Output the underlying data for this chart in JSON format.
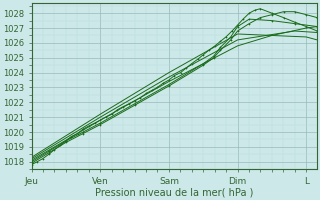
{
  "xlabel": "Pression niveau de la mer( hPa )",
  "background_color": "#cce8e8",
  "plot_bg_color": "#cce8e8",
  "line_color": "#1a6b1a",
  "grid_major_color": "#99bbbb",
  "grid_minor_color": "#bbdddd",
  "ylim": [
    1017.5,
    1028.7
  ],
  "xlim": [
    0,
    4.16
  ],
  "yticks": [
    1018,
    1019,
    1020,
    1021,
    1022,
    1023,
    1024,
    1025,
    1026,
    1027,
    1028
  ],
  "xtick_labels": [
    "Jeu",
    "Ven",
    "Sam",
    "Dim",
    "L"
  ],
  "xtick_pos": [
    0,
    1,
    2,
    3,
    4
  ],
  "series": [
    {
      "x": [
        0.0,
        0.08,
        0.16,
        0.25,
        0.33,
        0.42,
        0.5,
        0.58,
        0.67,
        0.75,
        0.83,
        0.92,
        1.0,
        1.08,
        1.17,
        1.25,
        1.33,
        1.42,
        1.5,
        1.58,
        1.67,
        1.75,
        1.83,
        1.92,
        2.0,
        2.08,
        2.17,
        2.25,
        2.33,
        2.42,
        2.5,
        2.58,
        2.67,
        2.75,
        2.83,
        2.92,
        3.0,
        3.08,
        3.17,
        3.25,
        3.33,
        3.5,
        3.67,
        3.83,
        4.0,
        4.16
      ],
      "y": [
        1017.8,
        1018.0,
        1018.2,
        1018.5,
        1018.8,
        1019.1,
        1019.4,
        1019.7,
        1019.9,
        1020.2,
        1020.4,
        1020.6,
        1020.8,
        1021.0,
        1021.2,
        1021.5,
        1021.7,
        1021.9,
        1022.1,
        1022.3,
        1022.6,
        1022.8,
        1023.0,
        1023.3,
        1023.5,
        1023.8,
        1024.0,
        1024.3,
        1024.6,
        1024.9,
        1025.2,
        1025.5,
        1025.8,
        1026.1,
        1026.4,
        1026.8,
        1027.2,
        1027.6,
        1028.0,
        1028.2,
        1028.3,
        1028.0,
        1027.7,
        1027.4,
        1027.1,
        1026.8
      ],
      "marker": true
    },
    {
      "x": [
        0.0,
        0.25,
        0.5,
        0.75,
        1.0,
        1.5,
        2.0,
        2.5,
        2.65,
        2.75,
        2.9,
        3.0,
        3.17,
        3.33,
        3.5,
        3.67,
        3.83,
        4.0,
        4.16
      ],
      "y": [
        1017.9,
        1018.6,
        1019.3,
        1019.9,
        1020.5,
        1021.8,
        1023.1,
        1024.5,
        1025.0,
        1025.5,
        1026.2,
        1026.8,
        1027.3,
        1027.7,
        1027.9,
        1028.1,
        1028.1,
        1027.9,
        1027.7
      ],
      "marker": true
    },
    {
      "x": [
        0.0,
        0.25,
        0.5,
        0.75,
        1.0,
        1.5,
        2.0,
        2.5,
        2.65,
        2.75,
        2.9,
        3.0,
        3.17,
        3.5,
        3.83,
        4.16
      ],
      "y": [
        1018.0,
        1018.7,
        1019.4,
        1020.0,
        1020.6,
        1021.9,
        1023.2,
        1024.6,
        1025.1,
        1025.7,
        1026.4,
        1027.1,
        1027.6,
        1027.5,
        1027.3,
        1027.1
      ],
      "marker": true
    },
    {
      "x": [
        0.0,
        1.0,
        2.0,
        3.0,
        3.5,
        4.0,
        4.16
      ],
      "y": [
        1018.1,
        1020.8,
        1023.4,
        1025.8,
        1026.5,
        1027.0,
        1027.1
      ],
      "marker": false
    },
    {
      "x": [
        0.0,
        1.0,
        2.0,
        3.0,
        3.83,
        4.16
      ],
      "y": [
        1018.2,
        1021.0,
        1023.7,
        1026.2,
        1026.8,
        1026.7
      ],
      "marker": false
    },
    {
      "x": [
        0.0,
        1.0,
        2.0,
        3.0,
        4.0,
        4.16
      ],
      "y": [
        1018.3,
        1021.2,
        1024.0,
        1026.6,
        1026.4,
        1026.2
      ],
      "marker": false
    }
  ]
}
